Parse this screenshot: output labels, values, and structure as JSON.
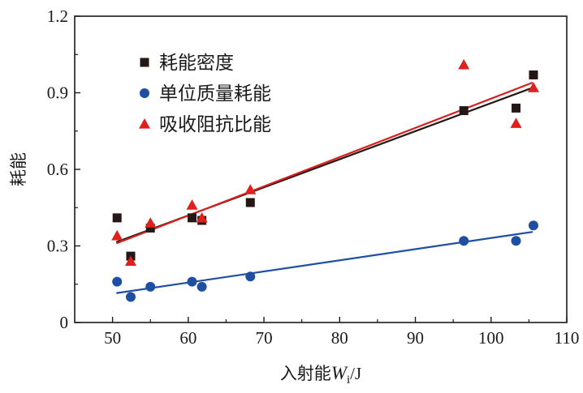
{
  "chart_data": {
    "type": "scatter",
    "xlabel": {
      "prefix": "入射能",
      "var": "W",
      "sub": "i",
      "unit": "/J"
    },
    "ylabel": "耗能",
    "xlim": [
      45,
      110
    ],
    "ylim": [
      0,
      1.2
    ],
    "xticks": [
      "50",
      "60",
      "70",
      "80",
      "90",
      "100",
      "110"
    ],
    "xtick_values": [
      50,
      60,
      70,
      80,
      90,
      100,
      110
    ],
    "yticks": [
      "0",
      "0.3",
      "0.6",
      "0.9",
      "1.2"
    ],
    "ytick_values": [
      0,
      0.3,
      0.6,
      0.9,
      1.2
    ],
    "grid": false,
    "legend_position": "top-left",
    "series": [
      {
        "name": "耗能密度",
        "marker": "square",
        "color": "#231815",
        "line_color": "#231815",
        "points": [
          [
            50.6,
            0.41
          ],
          [
            52.4,
            0.26
          ],
          [
            55.0,
            0.37
          ],
          [
            60.5,
            0.41
          ],
          [
            61.8,
            0.4
          ],
          [
            68.2,
            0.47
          ],
          [
            96.4,
            0.83
          ],
          [
            103.3,
            0.84
          ],
          [
            105.6,
            0.97
          ]
        ],
        "fit": [
          [
            50.5,
            0.315
          ],
          [
            105.5,
            0.92
          ]
        ]
      },
      {
        "name": "单位质量耗能",
        "marker": "circle",
        "color": "#1f4fa3",
        "line_color": "#1f4fa3",
        "points": [
          [
            50.6,
            0.16
          ],
          [
            52.4,
            0.1
          ],
          [
            55.0,
            0.14
          ],
          [
            60.5,
            0.16
          ],
          [
            61.8,
            0.14
          ],
          [
            68.2,
            0.18
          ],
          [
            96.4,
            0.32
          ],
          [
            103.3,
            0.32
          ],
          [
            105.6,
            0.38
          ]
        ],
        "fit": [
          [
            50.5,
            0.115
          ],
          [
            105.5,
            0.355
          ]
        ]
      },
      {
        "name": "吸收阻抗比能",
        "marker": "triangle",
        "color": "#e0201c",
        "line_color": "#d62020",
        "points": [
          [
            50.6,
            0.34
          ],
          [
            52.4,
            0.24
          ],
          [
            55.0,
            0.39
          ],
          [
            60.5,
            0.46
          ],
          [
            61.8,
            0.41
          ],
          [
            68.2,
            0.52
          ],
          [
            96.4,
            1.01
          ],
          [
            103.3,
            0.78
          ],
          [
            105.6,
            0.92
          ]
        ],
        "fit": [
          [
            50.5,
            0.31
          ],
          [
            105.5,
            0.94
          ]
        ]
      }
    ]
  }
}
